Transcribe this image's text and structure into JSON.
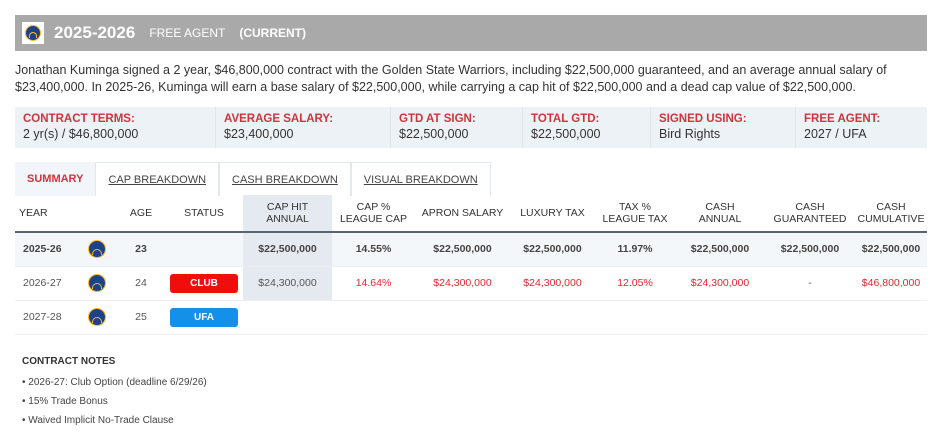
{
  "header": {
    "season": "2025-2026",
    "type": "FREE AGENT",
    "current": "(CURRENT)"
  },
  "description": "Jonathan Kuminga signed a 2 year, $46,800,000 contract with the Golden State Warriors, including $22,500,000 guaranteed, and an average annual salary of $23,400,000. In 2025-26, Kuminga will earn a base salary of $22,500,000, while carrying a cap hit of $22,500,000 and a dead cap value of $22,500,000.",
  "info": [
    {
      "label": "CONTRACT TERMS:",
      "value": "2 yr(s) / $46,800,000"
    },
    {
      "label": "AVERAGE SALARY:",
      "value": "$23,400,000"
    },
    {
      "label": "GTD AT SIGN:",
      "value": "$22,500,000"
    },
    {
      "label": "TOTAL GTD:",
      "value": "$22,500,000"
    },
    {
      "label": "SIGNED USING:",
      "value": "Bird Rights"
    },
    {
      "label": "FREE AGENT:",
      "value": "2027 / UFA"
    }
  ],
  "tabs": [
    "SUMMARY",
    "CAP BREAKDOWN",
    "CASH BREAKDOWN",
    "VISUAL BREAKDOWN"
  ],
  "columns": [
    [
      "YEAR"
    ],
    [
      ""
    ],
    [
      "AGE"
    ],
    [
      "STATUS"
    ],
    [
      "CAP HIT",
      "ANNUAL"
    ],
    [
      "CAP %",
      "LEAGUE CAP"
    ],
    [
      "APRON SALARY"
    ],
    [
      "LUXURY TAX"
    ],
    [
      "TAX %",
      "LEAGUE TAX"
    ],
    [
      "CASH",
      "ANNUAL"
    ],
    [
      "CASH",
      "GUARANTEED"
    ],
    [
      "CASH",
      "CUMULATIVE"
    ]
  ],
  "rows": [
    {
      "year": "2025-26",
      "age": "23",
      "status": "",
      "cap_hit": "$22,500,000",
      "cap_pct": "14.55%",
      "apron": "$22,500,000",
      "lux": "$22,500,000",
      "tax_pct": "11.97%",
      "cash": "$22,500,000",
      "guar": "$22,500,000",
      "cum": "$22,500,000"
    },
    {
      "year": "2026-27",
      "age": "24",
      "status": "CLUB",
      "cap_hit": "$24,300,000",
      "cap_pct": "14.64%",
      "apron": "$24,300,000",
      "lux": "$24,300,000",
      "tax_pct": "12.05%",
      "cash": "$24,300,000",
      "guar": "-",
      "cum": "$46,800,000"
    },
    {
      "year": "2027-28",
      "age": "25",
      "status": "UFA"
    }
  ],
  "colors": {
    "club": "#f20d0d",
    "ufa": "#1490e8",
    "accent": "#d0343c"
  },
  "notes": {
    "title": "CONTRACT NOTES",
    "items": [
      "2026-27: Club Option (deadline 6/29/26)",
      "15% Trade Bonus",
      "Waived Implicit No-Trade Clause"
    ]
  }
}
